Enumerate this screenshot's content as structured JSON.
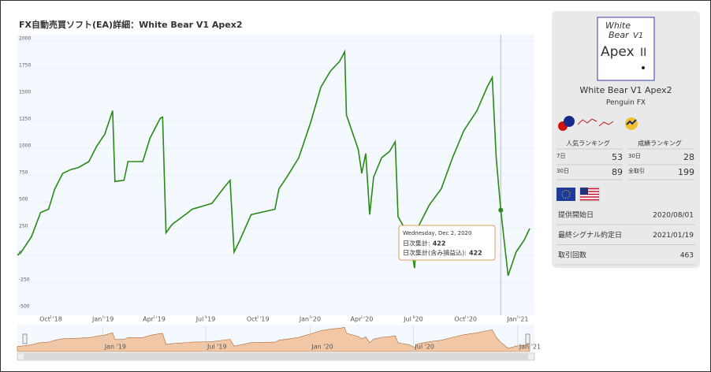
{
  "chart_data": {
    "type": "line",
    "title": "FX自動売買ソフト(EA)詳細：White Bear V1 Apex2",
    "x": [
      "2018-08-03",
      "2018-08-11",
      "2018-08-28",
      "2018-09-13",
      "2018-09-27",
      "2018-10-08",
      "2018-10-22",
      "2018-11-05",
      "2018-11-19",
      "2018-12-07",
      "2018-12-21",
      "2019-01-04",
      "2019-01-18",
      "2019-01-22",
      "2019-02-07",
      "2019-02-14",
      "2019-03-12",
      "2019-03-25",
      "2019-04-12",
      "2019-04-16",
      "2019-04-22",
      "2019-05-03",
      "2019-05-31",
      "2019-06-07",
      "2019-07-12",
      "2019-08-02",
      "2019-08-13",
      "2019-08-20",
      "2019-08-30",
      "2019-09-19",
      "2019-10-31",
      "2019-11-07",
      "2019-11-21",
      "2019-12-12",
      "2020-01-02",
      "2020-01-20",
      "2020-02-06",
      "2020-02-22",
      "2020-03-02",
      "2020-03-05",
      "2020-03-26",
      "2020-04-01",
      "2020-04-08",
      "2020-04-15",
      "2020-04-22",
      "2020-05-06",
      "2020-05-20",
      "2020-05-30",
      "2020-06-04",
      "2020-06-24",
      "2020-07-03",
      "2020-07-08",
      "2020-07-29",
      "2020-08-19",
      "2020-09-08",
      "2020-09-28",
      "2020-10-21",
      "2020-11-08",
      "2020-11-17",
      "2020-11-24",
      "2020-12-02",
      "2020-12-15",
      "2020-12-29",
      "2021-01-12",
      "2021-01-22"
    ],
    "series": [
      {
        "name": "日次集計(含み損益込)",
        "color": "#2a8a17",
        "values": [
          0,
          40,
          175,
          400,
          430,
          620,
          765,
          800,
          820,
          875,
          1020,
          1130,
          1350,
          690,
          700,
          875,
          875,
          1095,
          1280,
          1290,
          210,
          290,
          400,
          430,
          485,
          630,
          700,
          30,
          140,
          380,
          430,
          620,
          730,
          910,
          1240,
          1570,
          1720,
          1810,
          1900,
          1310,
          985,
          765,
          950,
          380,
          730,
          910,
          970,
          1060,
          360,
          175,
          -120,
          250,
          470,
          620,
          910,
          1165,
          1350,
          1570,
          1660,
          910,
          422,
          -190,
          30,
          140,
          250
        ]
      }
    ],
    "xlim": [
      "2018-08-03",
      "2021-01-22"
    ],
    "xticks": [
      {
        "value": "2018-10-01",
        "label": "Oct '18"
      },
      {
        "value": "2019-01-01",
        "label": "Jan '19"
      },
      {
        "value": "2019-04-01",
        "label": "Apr '19"
      },
      {
        "value": "2019-07-01",
        "label": "Jul '19"
      },
      {
        "value": "2019-10-01",
        "label": "Oct '19"
      },
      {
        "value": "2020-01-01",
        "label": "Jan '20"
      },
      {
        "value": "2020-04-01",
        "label": "Apr '20"
      },
      {
        "value": "2020-07-01",
        "label": "Jul '20"
      },
      {
        "value": "2020-10-01",
        "label": "Oct '20"
      },
      {
        "value": "2021-01-01",
        "label": "Jan '21"
      }
    ],
    "navigator_ticks": [
      {
        "value": "2019-01-01",
        "label": "Jan '19"
      },
      {
        "value": "2019-07-01",
        "label": "Jul '19"
      },
      {
        "value": "2020-01-01",
        "label": "Jan '20"
      },
      {
        "value": "2020-07-01",
        "label": "Jul '20"
      },
      {
        "value": "2021-01-01",
        "label": "Jan '21"
      }
    ],
    "ylim": [
      -500,
      2000
    ],
    "yticks": [
      -500,
      -250,
      0,
      250,
      500,
      750,
      1000,
      1250,
      1500,
      1750,
      2000
    ],
    "grid": true,
    "tooltip": {
      "date": "Wednesday, Dec 2, 2020",
      "rows": [
        {
          "label": "日次集計:",
          "value": 422,
          "color": "#e07a20"
        },
        {
          "label": "日次集計(含み損益込):",
          "value": 422,
          "color": "#2a8a17"
        }
      ]
    }
  },
  "sidebar": {
    "logo": {
      "line1": "White",
      "line2": "Bear",
      "v": "V1",
      "apex": "Apex",
      "roman": "II"
    },
    "name": "White Bear V1 Apex2",
    "author": "Penguin FX",
    "rankings": [
      {
        "title": "人気ランキング",
        "rows": [
          {
            "label": "7日",
            "value": 53
          },
          {
            "label": "30日",
            "value": 89
          }
        ]
      },
      {
        "title": "成績ランキング",
        "rows": [
          {
            "label": "30日",
            "value": 28
          },
          {
            "label": "全取引",
            "value": 199
          }
        ]
      }
    ],
    "info": [
      {
        "label": "提供開始日",
        "value": "2020/08/01"
      },
      {
        "label": "最終シグナル約定日",
        "value": "2021/01/19"
      },
      {
        "label": "取引回数",
        "value": 463
      }
    ]
  }
}
